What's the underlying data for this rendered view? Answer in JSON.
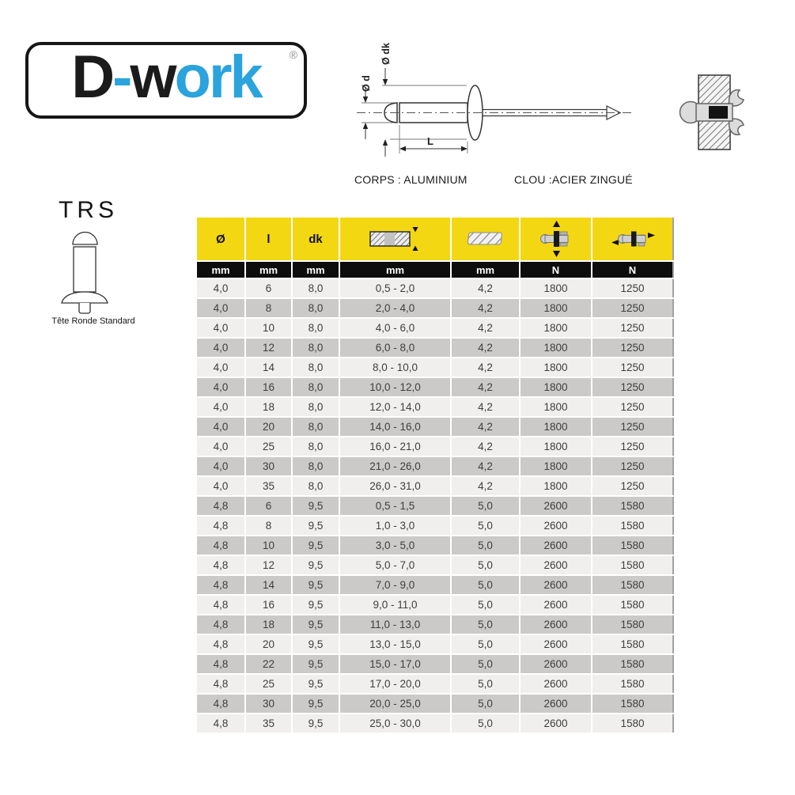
{
  "brand": {
    "part1": "D",
    "part2": "-",
    "part3": "w",
    "part4": "ork",
    "registered": "®"
  },
  "product": {
    "code": "TRS",
    "type_caption": "Tête Ronde Standard"
  },
  "materials": {
    "body": "CORPS : ALUMINIUM",
    "nail": "CLOU :ACIER ZINGUÉ"
  },
  "diagram_labels": {
    "body_diameter": "Ø d",
    "head_diameter": "Ø dk",
    "length": "L"
  },
  "colors": {
    "accent_blue": "#2ba3dc",
    "logo_black": "#1b1b1b",
    "header_yellow": "#F3D713",
    "unit_row_black": "#0d0d0d",
    "row_light": "#f0efee",
    "row_dark": "#cbcac9"
  },
  "table": {
    "header_labels": {
      "diameter": "Ø",
      "length": "l",
      "head_diameter": "dk"
    },
    "header_icons": [
      "grip-range",
      "drill-hole",
      "tensile-strength",
      "shear-strength"
    ],
    "units": [
      "mm",
      "mm",
      "mm",
      "mm",
      "mm",
      "N",
      "N"
    ],
    "rows": [
      [
        "4,0",
        "6",
        "8,0",
        "0,5 - 2,0",
        "4,2",
        "1800",
        "1250"
      ],
      [
        "4,0",
        "8",
        "8,0",
        "2,0 - 4,0",
        "4,2",
        "1800",
        "1250"
      ],
      [
        "4,0",
        "10",
        "8,0",
        "4,0 - 6,0",
        "4,2",
        "1800",
        "1250"
      ],
      [
        "4,0",
        "12",
        "8,0",
        "6,0 - 8,0",
        "4,2",
        "1800",
        "1250"
      ],
      [
        "4,0",
        "14",
        "8,0",
        "8,0 - 10,0",
        "4,2",
        "1800",
        "1250"
      ],
      [
        "4,0",
        "16",
        "8,0",
        "10,0 - 12,0",
        "4,2",
        "1800",
        "1250"
      ],
      [
        "4,0",
        "18",
        "8,0",
        "12,0 - 14,0",
        "4,2",
        "1800",
        "1250"
      ],
      [
        "4,0",
        "20",
        "8,0",
        "14,0 - 16,0",
        "4,2",
        "1800",
        "1250"
      ],
      [
        "4,0",
        "25",
        "8,0",
        "16,0 - 21,0",
        "4,2",
        "1800",
        "1250"
      ],
      [
        "4,0",
        "30",
        "8,0",
        "21,0 - 26,0",
        "4,2",
        "1800",
        "1250"
      ],
      [
        "4,0",
        "35",
        "8,0",
        "26,0 - 31,0",
        "4,2",
        "1800",
        "1250"
      ],
      [
        "4,8",
        "6",
        "9,5",
        "0,5 - 1,5",
        "5,0",
        "2600",
        "1580"
      ],
      [
        "4,8",
        "8",
        "9,5",
        "1,0 - 3,0",
        "5,0",
        "2600",
        "1580"
      ],
      [
        "4,8",
        "10",
        "9,5",
        "3,0 - 5,0",
        "5,0",
        "2600",
        "1580"
      ],
      [
        "4,8",
        "12",
        "9,5",
        "5,0 - 7,0",
        "5,0",
        "2600",
        "1580"
      ],
      [
        "4,8",
        "14",
        "9,5",
        "7,0 - 9,0",
        "5,0",
        "2600",
        "1580"
      ],
      [
        "4,8",
        "16",
        "9,5",
        "9,0 - 11,0",
        "5,0",
        "2600",
        "1580"
      ],
      [
        "4,8",
        "18",
        "9,5",
        "11,0 - 13,0",
        "5,0",
        "2600",
        "1580"
      ],
      [
        "4,8",
        "20",
        "9,5",
        "13,0 - 15,0",
        "5,0",
        "2600",
        "1580"
      ],
      [
        "4,8",
        "22",
        "9,5",
        "15,0 - 17,0",
        "5,0",
        "2600",
        "1580"
      ],
      [
        "4,8",
        "25",
        "9,5",
        "17,0 - 20,0",
        "5,0",
        "2600",
        "1580"
      ],
      [
        "4,8",
        "30",
        "9,5",
        "20,0 - 25,0",
        "5,0",
        "2600",
        "1580"
      ],
      [
        "4,8",
        "35",
        "9,5",
        "25,0 - 30,0",
        "5,0",
        "2600",
        "1580"
      ]
    ]
  }
}
